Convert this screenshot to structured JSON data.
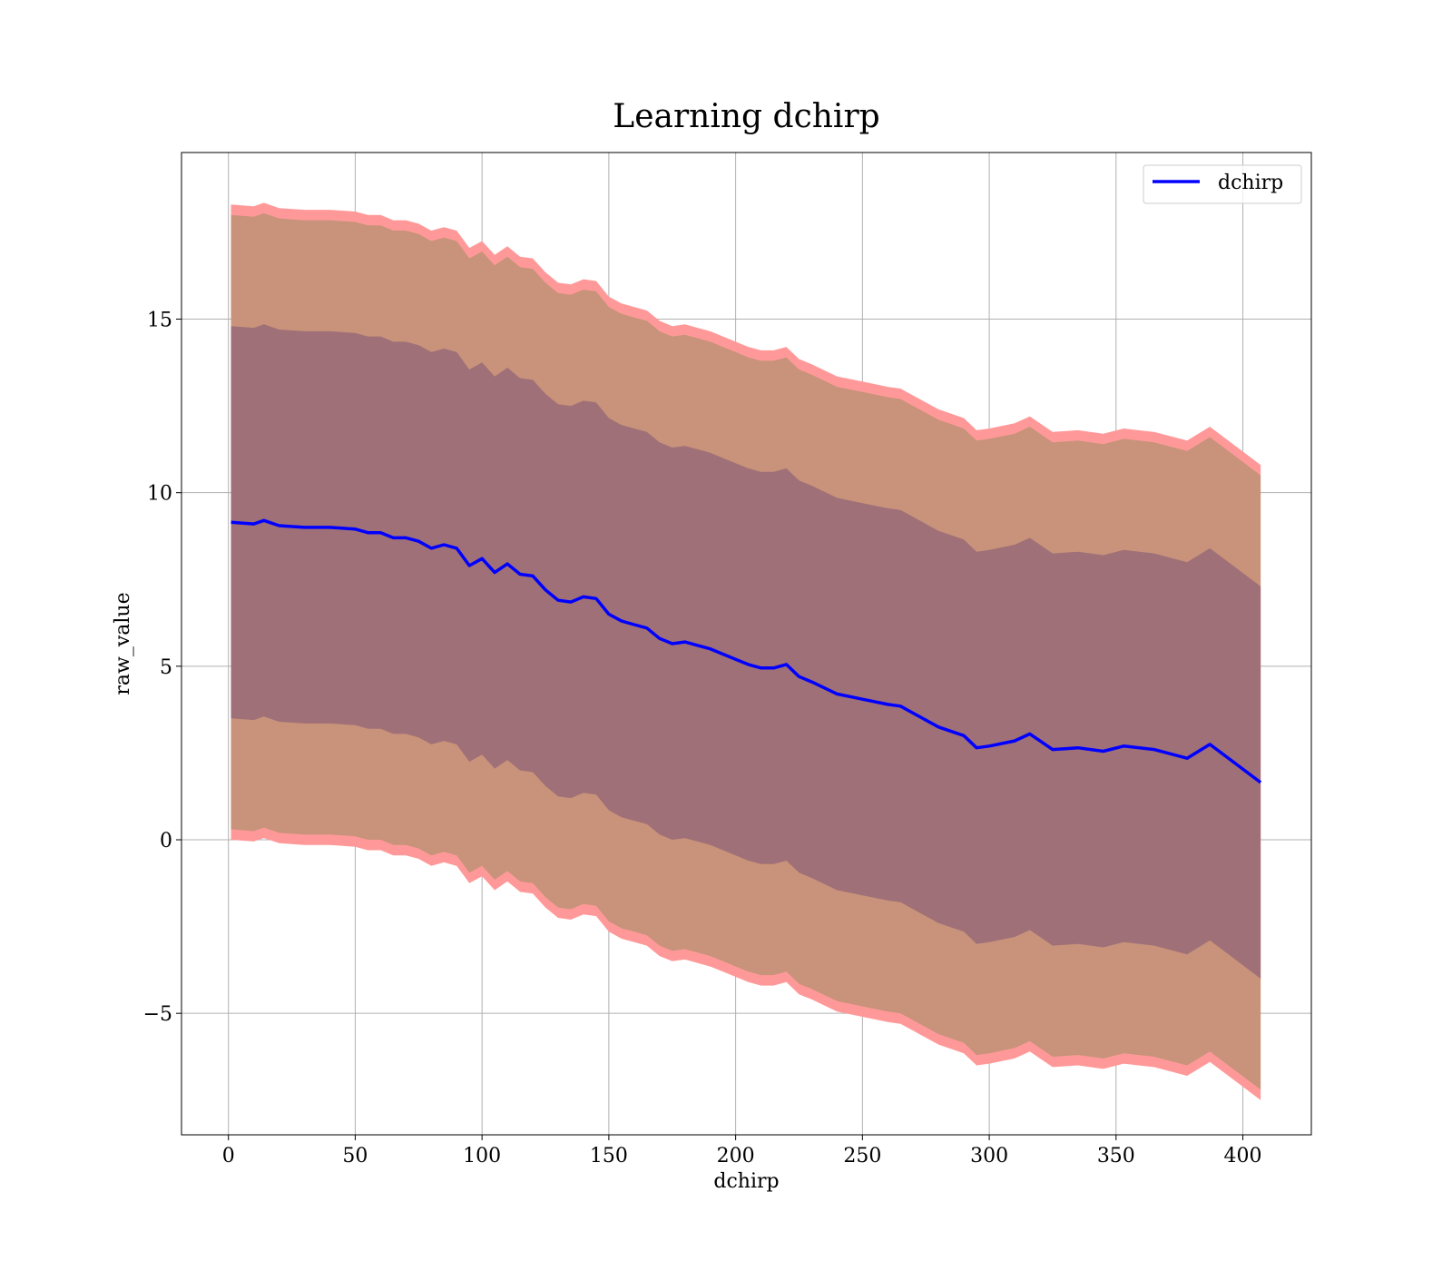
{
  "chart_data": {
    "type": "line",
    "title": "Learning dchirp",
    "xlabel": "dchirp",
    "ylabel": "raw_value",
    "xlim": [
      -18.5,
      427
    ],
    "ylim": [
      -8.5,
      19.8
    ],
    "xticks": [
      0,
      50,
      100,
      150,
      200,
      250,
      300,
      350,
      400
    ],
    "yticks": [
      -5,
      0,
      5,
      10,
      15
    ],
    "xtick_labels": [
      "0",
      "50",
      "100",
      "150",
      "200",
      "250",
      "300",
      "350",
      "400"
    ],
    "ytick_labels": [
      "−5",
      "0",
      "5",
      "10",
      "15"
    ],
    "grid": true,
    "legend": {
      "position": "top-right",
      "entries": [
        "dchirp"
      ]
    },
    "colors": {
      "line": "#0000ff",
      "outer_band": "#ff9999",
      "middle_band": "#c8937a",
      "inner_band": "#a07078",
      "grid": "#b0b0b0"
    },
    "series": [
      {
        "name": "dchirp",
        "x": [
          1,
          10,
          14,
          20,
          30,
          40,
          50,
          55,
          60,
          65,
          70,
          75,
          80,
          85,
          90,
          95,
          100,
          105,
          110,
          115,
          120,
          125,
          130,
          135,
          140,
          145,
          150,
          155,
          160,
          165,
          170,
          175,
          180,
          185,
          190,
          195,
          200,
          205,
          210,
          215,
          220,
          225,
          230,
          240,
          250,
          260,
          265,
          270,
          280,
          290,
          295,
          300,
          310,
          316,
          325,
          335,
          345,
          353,
          365,
          378,
          387,
          397,
          407
        ],
        "y": [
          9.15,
          9.1,
          9.2,
          9.05,
          9.0,
          9.0,
          8.95,
          8.85,
          8.85,
          8.7,
          8.7,
          8.6,
          8.4,
          8.5,
          8.4,
          7.9,
          8.1,
          7.7,
          7.95,
          7.65,
          7.6,
          7.2,
          6.9,
          6.85,
          7.0,
          6.95,
          6.5,
          6.3,
          6.2,
          6.1,
          5.8,
          5.65,
          5.7,
          5.6,
          5.5,
          5.35,
          5.2,
          5.05,
          4.95,
          4.95,
          5.05,
          4.7,
          4.55,
          4.2,
          4.05,
          3.9,
          3.85,
          3.65,
          3.25,
          3.0,
          2.65,
          2.7,
          2.85,
          3.05,
          2.6,
          2.65,
          2.55,
          2.7,
          2.6,
          2.35,
          2.75,
          2.2,
          1.65
        ]
      }
    ],
    "bands": [
      {
        "label": "outer",
        "lower_offset": -9.15,
        "upper_offset": 9.15
      },
      {
        "label": "middle",
        "lower_offset": -8.85,
        "upper_offset": 8.85
      },
      {
        "label": "inner",
        "lower_offset": -5.65,
        "upper_offset": 5.65
      }
    ]
  }
}
